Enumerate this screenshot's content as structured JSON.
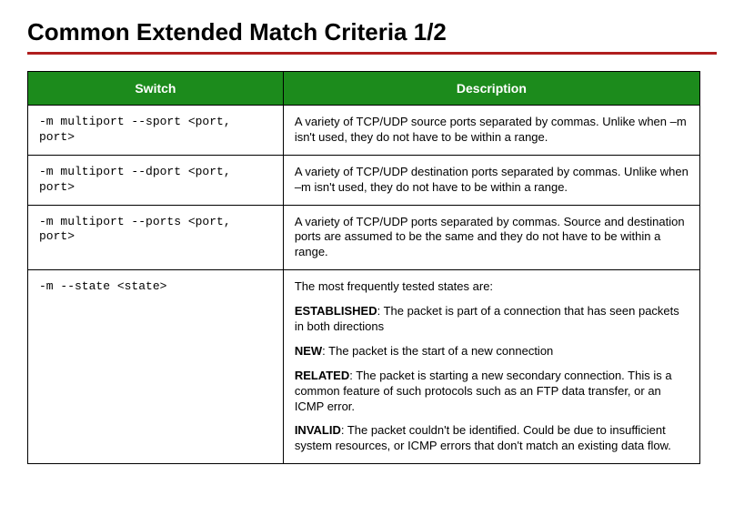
{
  "title": "Common Extended Match Criteria 1/2",
  "colors": {
    "accent_underline": "#b01e1e",
    "header_bg": "#1c8b1c",
    "header_text": "#ffffff",
    "border": "#000000"
  },
  "table": {
    "columns": [
      "Switch",
      "Description"
    ],
    "rows": [
      {
        "switch": "-m multiport --sport <port, port>",
        "description": "A variety of TCP/UDP source ports separated by commas. Unlike when –m isn't used, they do not have to be within a range."
      },
      {
        "switch": "-m multiport --dport <port, port>",
        "description": "A variety of TCP/UDP destination ports separated by commas. Unlike when –m isn't used, they do not have to be within a range."
      },
      {
        "switch": "-m multiport --ports <port, port>",
        "description": "A variety of TCP/UDP ports separated by commas. Source and destination ports are assumed to be the same and they do not have to be within a range."
      },
      {
        "switch": "-m --state <state>",
        "intro": "The most frequently tested states are:",
        "states": [
          {
            "name": "ESTABLISHED",
            "text": ": The packet is part of a connection that has seen packets in both directions"
          },
          {
            "name": "NEW",
            "text": ": The packet is the start of a new connection"
          },
          {
            "name": "RELATED",
            "text": ": The packet is starting a new secondary connection. This is a common feature of such protocols such as an FTP data transfer, or an ICMP error."
          },
          {
            "name": "INVALID",
            "text": ": The packet couldn't be identified. Could be due to insufficient system resources, or ICMP errors that don't match an existing data flow."
          }
        ]
      }
    ]
  }
}
